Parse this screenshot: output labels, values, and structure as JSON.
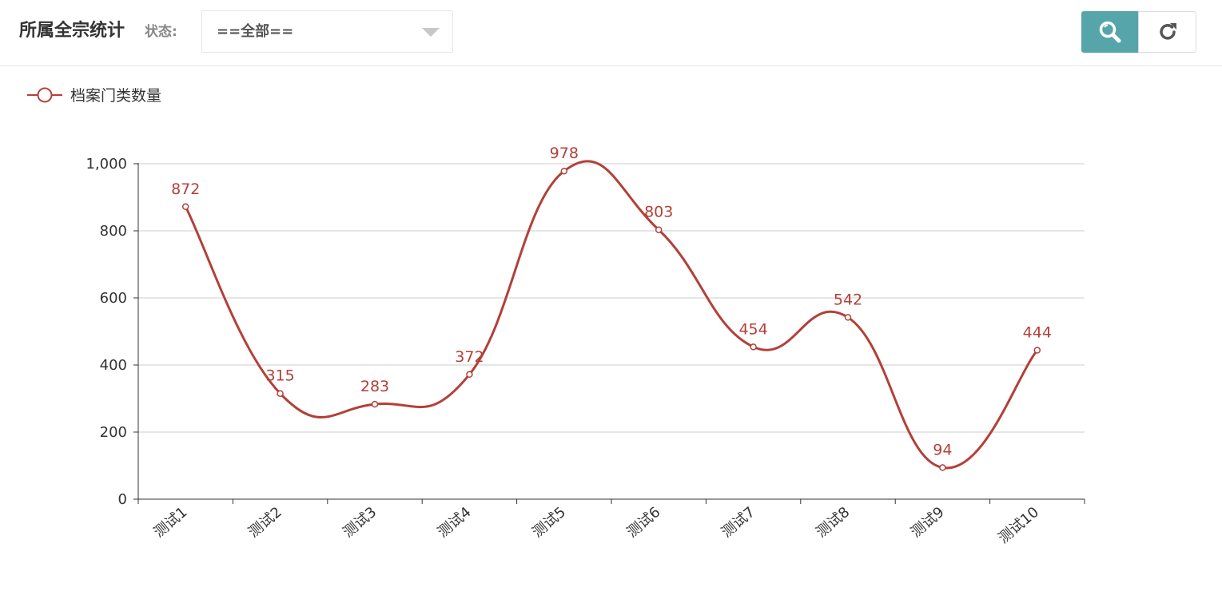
{
  "header": {
    "title": "所属全宗统计",
    "status_label": "状态:",
    "status_select": {
      "value": "==全部=="
    },
    "search_icon": "search-icon",
    "refresh_icon": "refresh-icon"
  },
  "colors": {
    "series": "#b34038",
    "search_button": "#56a5ab",
    "grid": "#cccccc",
    "axis": "#333333"
  },
  "chart_data": {
    "type": "line",
    "smooth": true,
    "categories": [
      "测试1",
      "测试2",
      "测试3",
      "测试4",
      "测试5",
      "测试6",
      "测试7",
      "测试8",
      "测试9",
      "测试10"
    ],
    "series": [
      {
        "name": "档案门类数量",
        "values": [
          872,
          315,
          283,
          372,
          978,
          803,
          454,
          542,
          94,
          444
        ]
      }
    ],
    "ylim": [
      0,
      1000
    ],
    "yticks": [
      0,
      200,
      400,
      600,
      800,
      1000
    ],
    "ytick_labels": [
      "0",
      "200",
      "400",
      "600",
      "800",
      "1,000"
    ],
    "grid": true,
    "legend_position": "top-left",
    "data_labels": true,
    "title": "",
    "xlabel": "",
    "ylabel": ""
  }
}
